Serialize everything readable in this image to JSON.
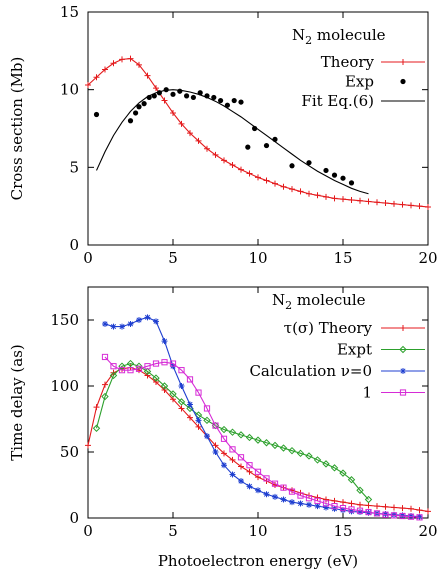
{
  "chart_data": [
    {
      "type": "scatter",
      "title": "N₂ molecule",
      "xlabel": "",
      "ylabel": "Cross section (Mb)",
      "xlim": [
        0,
        20
      ],
      "ylim": [
        0,
        15
      ],
      "xticks": [
        0,
        5,
        10,
        15,
        20
      ],
      "yticks": [
        0,
        5,
        10,
        15
      ],
      "grid": false,
      "legend_position": "top-right",
      "series": [
        {
          "name": "Theory",
          "kind": "line+markers",
          "marker": "plus",
          "color": "#e41a1c",
          "x": [
            0.0,
            0.5,
            1.0,
            1.5,
            2.0,
            2.5,
            3.0,
            3.5,
            4.0,
            4.5,
            5.0,
            5.5,
            6.0,
            6.5,
            7.0,
            7.5,
            8.0,
            8.5,
            9.0,
            9.5,
            10.0,
            10.5,
            11.0,
            11.5,
            12.0,
            12.5,
            13.0,
            13.5,
            14.0,
            14.5,
            15.0,
            15.5,
            16.0,
            16.5,
            17.0,
            17.5,
            18.0,
            18.5,
            19.0,
            19.5,
            20.0
          ],
          "y": [
            10.3,
            10.8,
            11.3,
            11.7,
            11.95,
            12.0,
            11.6,
            10.9,
            10.1,
            9.3,
            8.5,
            7.8,
            7.2,
            6.7,
            6.2,
            5.8,
            5.45,
            5.15,
            4.85,
            4.6,
            4.35,
            4.15,
            3.95,
            3.75,
            3.6,
            3.45,
            3.3,
            3.2,
            3.1,
            3.0,
            2.95,
            2.9,
            2.85,
            2.8,
            2.75,
            2.7,
            2.65,
            2.6,
            2.55,
            2.5,
            2.45
          ]
        },
        {
          "name": "Exp",
          "kind": "points",
          "marker": "dot",
          "color": "#000000",
          "x": [
            0.5,
            2.5,
            2.8,
            3.0,
            3.3,
            3.6,
            3.9,
            4.2,
            4.6,
            5.0,
            5.4,
            5.8,
            6.2,
            6.6,
            7.0,
            7.4,
            7.8,
            8.2,
            8.6,
            9.0,
            9.4,
            9.8,
            10.5,
            11.0,
            12.0,
            13.0,
            14.0,
            14.5,
            15.0,
            15.5
          ],
          "y": [
            8.4,
            8.0,
            8.5,
            8.9,
            9.1,
            9.5,
            9.6,
            9.8,
            10.0,
            9.7,
            9.9,
            9.6,
            9.5,
            9.8,
            9.6,
            9.5,
            9.3,
            9.0,
            9.3,
            9.2,
            6.3,
            7.5,
            6.4,
            6.8,
            5.1,
            5.3,
            4.8,
            4.5,
            4.3,
            4.0
          ]
        },
        {
          "name": "Fit Eq.(6)",
          "kind": "line",
          "color": "#000000",
          "x": [
            0.5,
            1.0,
            1.5,
            2.0,
            2.5,
            3.0,
            3.5,
            4.0,
            4.5,
            5.0,
            5.5,
            6.0,
            6.5,
            7.0,
            7.5,
            8.0,
            8.5,
            9.0,
            9.5,
            10.0,
            10.5,
            11.0,
            11.5,
            12.0,
            12.5,
            13.0,
            13.5,
            14.0,
            14.5,
            15.0,
            15.5,
            16.0,
            16.5
          ],
          "y": [
            4.8,
            6.0,
            7.05,
            7.9,
            8.6,
            9.15,
            9.55,
            9.8,
            9.95,
            10.0,
            9.95,
            9.85,
            9.7,
            9.5,
            9.25,
            8.95,
            8.6,
            8.25,
            7.85,
            7.45,
            7.05,
            6.65,
            6.25,
            5.85,
            5.45,
            5.1,
            4.75,
            4.45,
            4.15,
            3.9,
            3.65,
            3.45,
            3.3
          ]
        }
      ]
    },
    {
      "type": "line",
      "title": "N₂ molecule",
      "xlabel": "Photoelectron energy (eV)",
      "ylabel": "Time delay (as)",
      "xlim": [
        0,
        20
      ],
      "ylim": [
        0,
        175
      ],
      "xticks": [
        0,
        5,
        10,
        15,
        20
      ],
      "yticks": [
        0,
        50,
        100,
        150
      ],
      "grid": false,
      "legend_position": "top-right",
      "series": [
        {
          "name": "τ(σ) Theory",
          "marker": "plus",
          "color": "#e41a1c",
          "x": [
            0.0,
            0.5,
            1.0,
            1.5,
            2.0,
            2.5,
            3.0,
            3.5,
            4.0,
            4.5,
            5.0,
            5.5,
            6.0,
            6.5,
            7.0,
            7.5,
            8.0,
            8.5,
            9.0,
            9.5,
            10.0,
            10.5,
            11.0,
            11.5,
            12.0,
            12.5,
            13.0,
            13.5,
            14.0,
            14.5,
            15.0,
            15.5,
            16.0,
            16.5,
            17.0,
            17.5,
            18.0,
            18.5,
            19.0,
            19.5,
            20.0
          ],
          "y": [
            55,
            84,
            101,
            110,
            113,
            114,
            112,
            108,
            103,
            97,
            90,
            83,
            76,
            69,
            62,
            55,
            49,
            44,
            39,
            35,
            31,
            28,
            25,
            23,
            21,
            19,
            17,
            15.5,
            14,
            13,
            12,
            11,
            10,
            9.5,
            9,
            8.5,
            8,
            7.5,
            7,
            6,
            5
          ]
        },
        {
          "name": "Expt",
          "marker": "diamond",
          "color": "#2ca02c",
          "x": [
            0.5,
            1.0,
            1.5,
            2.0,
            2.5,
            3.0,
            3.5,
            4.0,
            4.5,
            5.0,
            5.5,
            6.0,
            6.5,
            7.0,
            7.5,
            8.0,
            8.5,
            9.0,
            9.5,
            10.0,
            10.5,
            11.0,
            11.5,
            12.0,
            12.5,
            13.0,
            13.5,
            14.0,
            14.5,
            15.0,
            15.5,
            16.0,
            16.5
          ],
          "y": [
            68,
            92,
            108,
            115,
            117,
            115,
            111,
            106,
            100,
            94,
            88,
            83,
            78,
            74,
            70,
            67,
            65,
            63,
            61,
            59,
            57,
            55,
            53,
            51,
            49,
            47,
            44,
            41,
            38,
            34,
            29,
            21,
            14
          ]
        },
        {
          "name": "Calculation ν=0",
          "marker": "star",
          "color": "#1f3fd0",
          "x": [
            1.0,
            1.5,
            2.0,
            2.5,
            3.0,
            3.5,
            4.0,
            4.5,
            5.0,
            5.5,
            6.0,
            6.5,
            7.0,
            7.5,
            8.0,
            8.5,
            9.0,
            9.5,
            10.0,
            10.5,
            11.0,
            11.5,
            12.0,
            12.5,
            13.0,
            13.5,
            14.0,
            14.5,
            15.0,
            15.5,
            16.0,
            16.5,
            17.0,
            17.5,
            18.0,
            18.5,
            19.0,
            19.5
          ],
          "y": [
            147,
            145,
            145,
            147,
            150,
            152,
            149,
            134,
            115,
            100,
            86,
            74,
            62,
            50,
            40,
            33,
            28,
            24,
            21,
            18,
            16,
            14,
            12,
            11,
            10,
            9,
            8,
            7,
            6,
            5,
            4.5,
            4,
            3.5,
            3,
            2.5,
            2,
            1.5,
            1
          ]
        },
        {
          "name": "1",
          "marker": "square",
          "color": "#d62bd6",
          "x": [
            1.0,
            1.5,
            2.0,
            2.5,
            3.0,
            3.5,
            4.0,
            4.5,
            5.0,
            5.5,
            6.0,
            6.5,
            7.0,
            7.5,
            8.0,
            8.5,
            9.0,
            9.5,
            10.0,
            10.5,
            11.0,
            11.5,
            12.0,
            12.5,
            13.0,
            13.5,
            14.0,
            14.5,
            15.0,
            15.5,
            16.0,
            16.5,
            17.0,
            17.5,
            18.0,
            18.5,
            19.0,
            19.5
          ],
          "y": [
            122,
            115,
            112,
            112,
            113,
            115,
            117,
            118,
            117,
            112,
            105,
            95,
            83,
            70,
            60,
            52,
            46,
            40,
            35,
            30,
            26,
            23,
            20,
            17,
            15,
            13,
            11,
            9,
            7.5,
            6.5,
            5.5,
            4.5,
            3.5,
            2.5,
            2,
            1.5,
            1,
            0.5
          ]
        }
      ]
    }
  ]
}
